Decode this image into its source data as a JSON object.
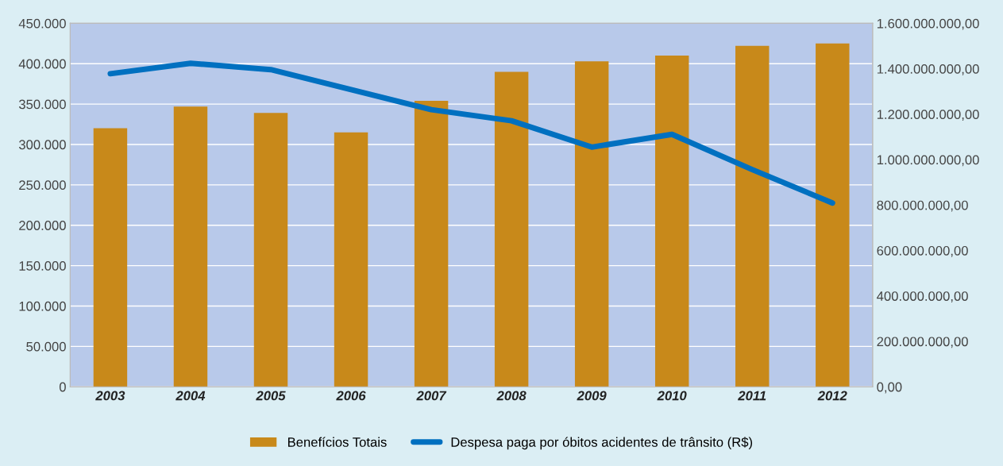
{
  "chart_data": {
    "type": "bar",
    "categories": [
      "2003",
      "2004",
      "2005",
      "2006",
      "2007",
      "2008",
      "2009",
      "2010",
      "2011",
      "2012"
    ],
    "series": [
      {
        "name": "Benefícios Totais",
        "color": "#c8891a",
        "values": [
          320000,
          347000,
          339000,
          315000,
          354000,
          390000,
          403000,
          410000,
          422000,
          425000
        ]
      },
      {
        "name": "Despesa paga por óbitos acidentes de trânsito (R$)",
        "type": "line",
        "axis": "y2",
        "color": "#0070c0",
        "values": [
          1378000000,
          1424000000,
          1396000000,
          1308000000,
          1220000000,
          1171000000,
          1055000000,
          1111000000,
          956000000,
          809000000
        ]
      }
    ],
    "ylim": [
      0,
      450000
    ],
    "yticks": [
      0,
      {
        "value": 50000,
        "label": "50.000"
      },
      {
        "value": 100000,
        "label": "100.000"
      },
      {
        "value": 150000,
        "label": "150.000"
      },
      {
        "value": 200000,
        "label": "200.000"
      },
      {
        "value": 250000,
        "label": "250.000"
      },
      {
        "value": 300000,
        "label": "300.000"
      },
      {
        "value": 350000,
        "label": "350.000"
      },
      {
        "value": 400000,
        "label": "400.000"
      },
      {
        "value": 450000,
        "label": "450.000"
      }
    ],
    "y2lim": [
      0,
      1600000000
    ],
    "y2ticks": [
      {
        "value": 0,
        "label": "0,00"
      },
      {
        "value": 200000000,
        "label": "200.000.000,00"
      },
      {
        "value": 400000000,
        "label": "400.000.000,00"
      },
      {
        "value": 600000000,
        "label": "600.000.000,00"
      },
      {
        "value": 800000000,
        "label": "800.000.000,00"
      },
      {
        "value": 1000000000,
        "label": "1.000.000.000,00"
      },
      {
        "value": 1200000000,
        "label": "1.200.000.000,00"
      },
      {
        "value": 1400000000,
        "label": "1.400.000.000,00"
      },
      {
        "value": 1600000000,
        "label": "1.600.000.000,00"
      }
    ],
    "grid": "y",
    "legend": "bottom",
    "marker": "none",
    "line_style": "solid"
  }
}
